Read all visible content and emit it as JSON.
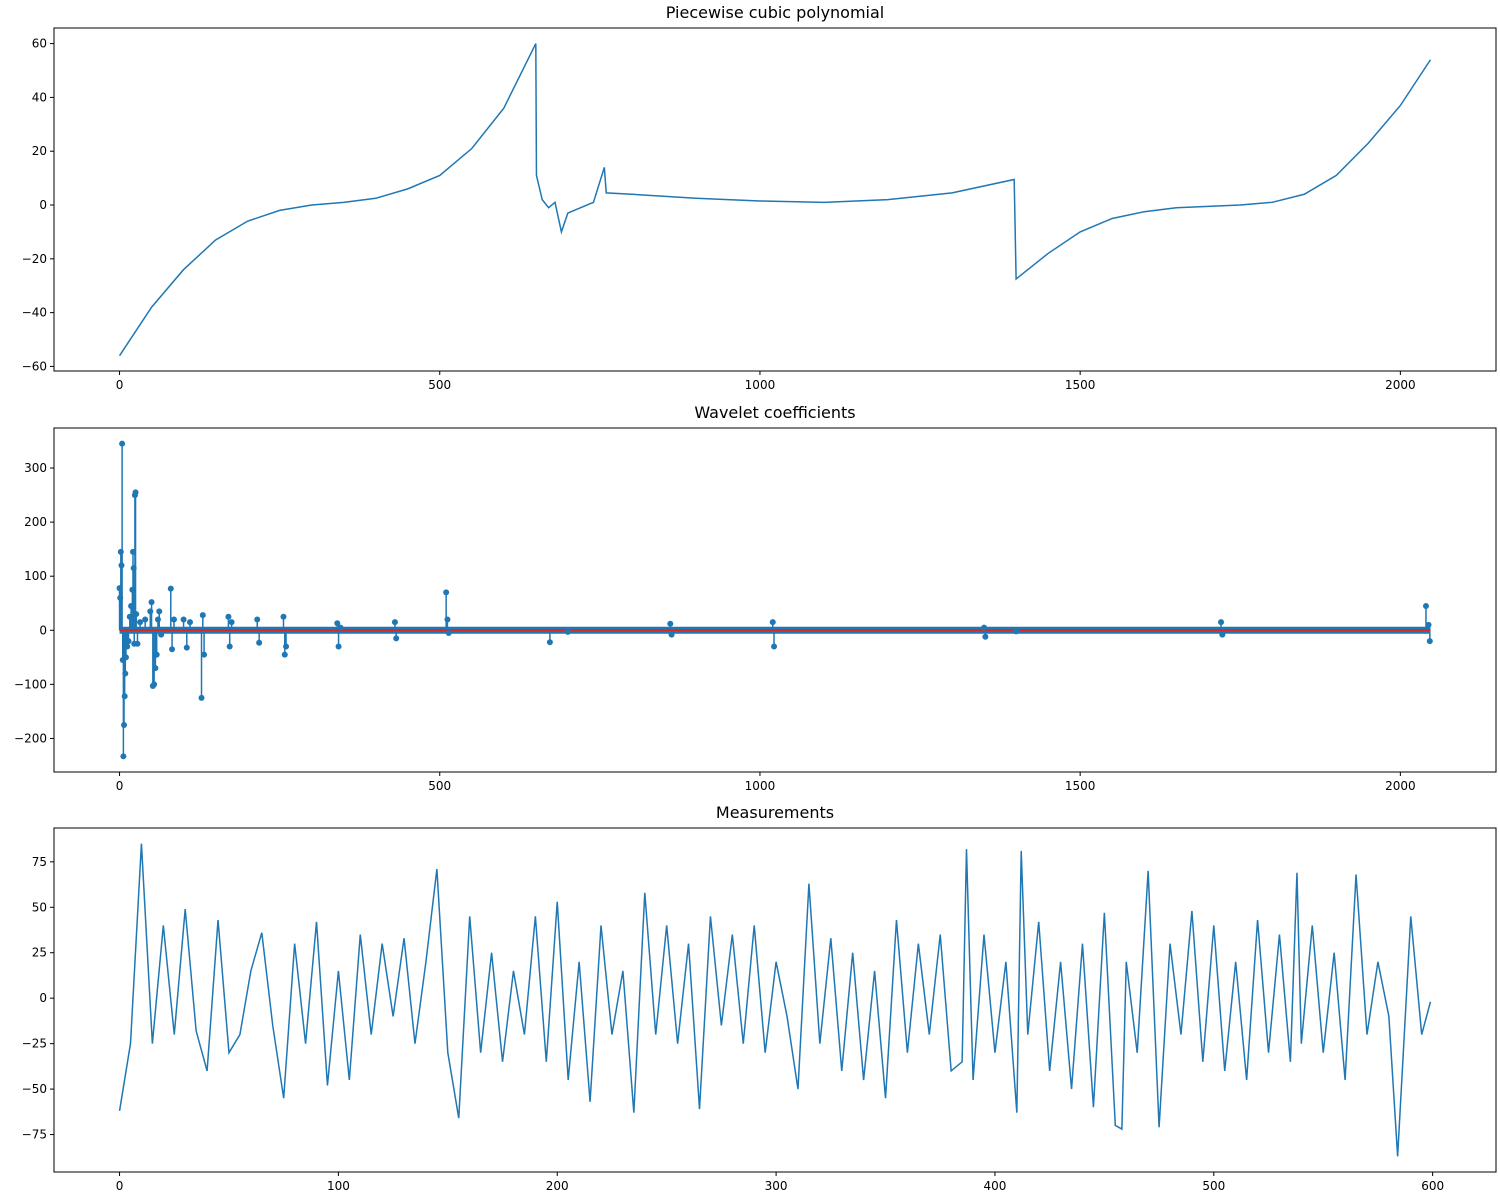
{
  "chart_data": [
    {
      "type": "line",
      "title": "Piecewise cubic polynomial",
      "color": "#1f77b4",
      "x": [
        0,
        50,
        100,
        150,
        200,
        250,
        300,
        350,
        400,
        450,
        500,
        550,
        600,
        650,
        651,
        660,
        670,
        680,
        690,
        700,
        720,
        740,
        757,
        760,
        800,
        900,
        1000,
        1100,
        1200,
        1300,
        1397,
        1400,
        1450,
        1500,
        1550,
        1600,
        1650,
        1700,
        1750,
        1800,
        1850,
        1900,
        1950,
        2000,
        2047
      ],
      "values": [
        -56,
        -38,
        -24,
        -13,
        -6,
        -2,
        0,
        1,
        2.5,
        6,
        11,
        21,
        36,
        60,
        11,
        2,
        -1,
        1,
        -10,
        -3,
        -1,
        1,
        14,
        4.5,
        4,
        2.5,
        1.5,
        1,
        2,
        4.5,
        9.5,
        -27.5,
        -18,
        -10,
        -5,
        -2.5,
        -1,
        -0.5,
        0,
        1,
        4,
        11,
        23,
        37,
        54
      ],
      "xlim": [
        -102.35,
        2149.35
      ],
      "ylim": [
        -61.7,
        65.8
      ],
      "xticks": [
        0,
        500,
        1000,
        1500,
        2000
      ],
      "yticks": [
        {
          "value": -60,
          "label": "−60"
        },
        {
          "value": -40,
          "label": "−40"
        },
        {
          "value": -20,
          "label": "−20"
        },
        0,
        20,
        40,
        60
      ]
    },
    {
      "type": "stem",
      "title": "Wavelet coefficients",
      "color": "#1f77b4",
      "baseline_color": "#d62728",
      "x": [
        0,
        1,
        2,
        3,
        4,
        5,
        6,
        7,
        8,
        9,
        10,
        12,
        14,
        16,
        18,
        20,
        21,
        22,
        23,
        24,
        25,
        26,
        28,
        32,
        40,
        48,
        50,
        52,
        54,
        56,
        58,
        60,
        62,
        65,
        80,
        82,
        85,
        100,
        105,
        110,
        128,
        130,
        132,
        170,
        172,
        175,
        215,
        218,
        256,
        258,
        260,
        340,
        342,
        345,
        430,
        432,
        510,
        512,
        514,
        672,
        700,
        860,
        862,
        1020,
        1022,
        1350,
        1352,
        1400,
        1720,
        1722,
        2040,
        2044,
        2046
      ],
      "values": [
        78,
        60,
        145,
        120,
        345,
        -55,
        -233,
        -175,
        -122,
        -80,
        -50,
        -30,
        -20,
        25,
        45,
        75,
        145,
        115,
        -25,
        250,
        255,
        30,
        -25,
        15,
        20,
        35,
        52,
        -103,
        -100,
        -70,
        -45,
        20,
        35,
        -8,
        77,
        -35,
        20,
        20,
        -32,
        15,
        -125,
        28,
        -45,
        25,
        -30,
        15,
        20,
        -23,
        25,
        -45,
        -30,
        13,
        -30,
        5,
        15,
        -15,
        70,
        20,
        -5,
        -22,
        -3,
        12,
        -8,
        15,
        -30,
        5,
        -12,
        -2,
        15,
        -8,
        45,
        10,
        -20
      ],
      "baseline": [
        0,
        2047
      ],
      "xlim": [
        -102.35,
        2149.35
      ],
      "ylim": [
        -262,
        374
      ],
      "xticks": [
        0,
        500,
        1000,
        1500,
        2000
      ],
      "yticks": [
        {
          "value": -200,
          "label": "−200"
        },
        {
          "value": -100,
          "label": "−100"
        },
        0,
        100,
        200,
        300
      ]
    },
    {
      "type": "line",
      "title": "Measurements",
      "color": "#1f77b4",
      "x": [
        0,
        5,
        10,
        15,
        20,
        25,
        30,
        35,
        40,
        45,
        50,
        55,
        60,
        65,
        70,
        75,
        80,
        85,
        90,
        95,
        100,
        105,
        110,
        115,
        120,
        125,
        130,
        135,
        140,
        145,
        150,
        155,
        160,
        165,
        170,
        175,
        180,
        185,
        190,
        195,
        200,
        205,
        210,
        215,
        220,
        225,
        230,
        235,
        240,
        245,
        250,
        255,
        260,
        265,
        270,
        275,
        280,
        285,
        290,
        295,
        300,
        305,
        310,
        315,
        320,
        325,
        330,
        335,
        340,
        345,
        350,
        355,
        360,
        365,
        370,
        375,
        380,
        385,
        387,
        390,
        395,
        400,
        405,
        410,
        412,
        415,
        420,
        425,
        430,
        435,
        440,
        445,
        450,
        455,
        458,
        460,
        465,
        470,
        475,
        480,
        485,
        490,
        495,
        500,
        505,
        510,
        515,
        520,
        525,
        530,
        535,
        538,
        540,
        545,
        550,
        555,
        560,
        565,
        570,
        575,
        580,
        584,
        590,
        595,
        599
      ],
      "values": [
        -62,
        -25,
        85,
        -25,
        40,
        -20,
        49,
        -18,
        -40,
        43,
        -30,
        -20,
        15,
        36,
        -15,
        -55,
        30,
        -25,
        42,
        -48,
        15,
        -45,
        35,
        -20,
        30,
        -10,
        33,
        -25,
        20,
        71,
        -30,
        -66,
        45,
        -30,
        25,
        -35,
        15,
        -20,
        45,
        -35,
        53,
        -45,
        20,
        -57,
        40,
        -20,
        15,
        -63,
        58,
        -20,
        40,
        -25,
        30,
        -61,
        45,
        -15,
        35,
        -25,
        40,
        -30,
        20,
        -10,
        -50,
        63,
        -25,
        33,
        -40,
        25,
        -45,
        15,
        -55,
        43,
        -30,
        30,
        -20,
        35,
        -40,
        -35,
        82,
        -45,
        35,
        -30,
        20,
        -63,
        81,
        -20,
        42,
        -40,
        20,
        -50,
        30,
        -60,
        47,
        -70,
        -72,
        20,
        -30,
        70,
        -71,
        30,
        -20,
        48,
        -35,
        40,
        -40,
        20,
        -45,
        43,
        -30,
        35,
        -35,
        69,
        -25,
        40,
        -30,
        25,
        -45,
        68,
        -20,
        20,
        -10,
        -87,
        45,
        -20,
        -2
      ],
      "xlim": [
        -29.95,
        628.95
      ],
      "ylim": [
        -95.6,
        93.6
      ],
      "xticks": [
        0,
        100,
        200,
        300,
        400,
        500,
        600
      ],
      "yticks": [
        {
          "value": -75,
          "label": "−75"
        },
        {
          "value": -50,
          "label": "−50"
        },
        {
          "value": -25,
          "label": "−25"
        },
        0,
        25,
        50,
        75
      ]
    }
  ]
}
